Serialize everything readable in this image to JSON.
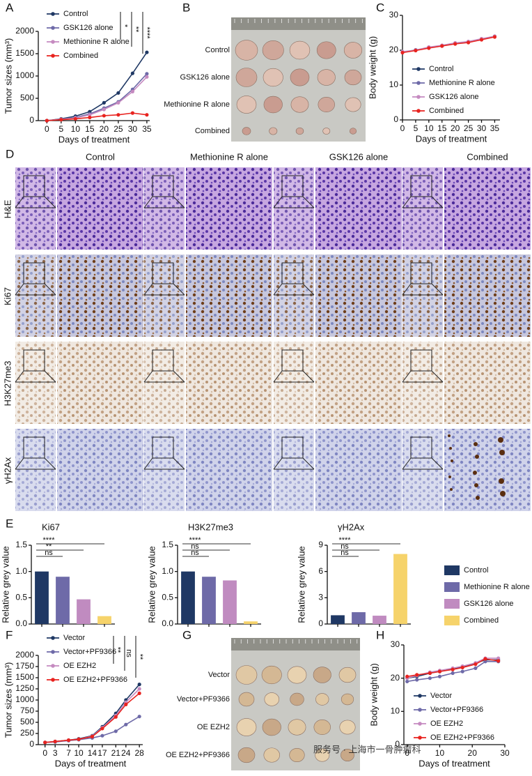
{
  "panel_labels": [
    "A",
    "B",
    "C",
    "D",
    "E",
    "F",
    "G",
    "H"
  ],
  "chart_data": [
    {
      "type": "line",
      "xlabel": "Days of treatment",
      "ylabel": "Tumor sizes (mm³)",
      "x": [
        0,
        5,
        10,
        15,
        20,
        25,
        30,
        35
      ],
      "xlim": [
        -3,
        36
      ],
      "xticks": [
        0,
        5,
        10,
        15,
        20,
        25,
        30,
        35
      ],
      "ylim": [
        0,
        2000
      ],
      "yticks": [
        0,
        500,
        1000,
        1500,
        2000
      ],
      "legend": "upper left",
      "series": [
        {
          "name": "Control",
          "color": "#1f3864",
          "values": [
            0,
            40,
            100,
            200,
            400,
            620,
            1060,
            1530
          ]
        },
        {
          "name": "GSK126 alone",
          "color": "#6e6aa8",
          "values": [
            0,
            30,
            70,
            150,
            280,
            420,
            700,
            1050
          ]
        },
        {
          "name": "Methionine R alone",
          "color": "#c58ac0",
          "values": [
            0,
            30,
            60,
            130,
            250,
            400,
            650,
            980
          ]
        },
        {
          "name": "Combined",
          "color": "#e8231f",
          "values": [
            0,
            20,
            40,
            70,
            110,
            130,
            170,
            130
          ]
        }
      ],
      "annotations": [
        "*",
        "**",
        "****"
      ]
    },
    {
      "type": "line",
      "xlabel": "Days of treatment",
      "ylabel": "Body weight (g)",
      "x": [
        0,
        5,
        10,
        15,
        20,
        25,
        30,
        35
      ],
      "xlim": [
        0,
        37
      ],
      "xticks": [
        0,
        5,
        10,
        15,
        20,
        25,
        30,
        35
      ],
      "ylim": [
        0,
        30
      ],
      "yticks": [
        0,
        10,
        20,
        30
      ],
      "legend": "center left",
      "series": [
        {
          "name": "Control",
          "color": "#1f3864",
          "values": [
            19.5,
            20,
            20.8,
            21.3,
            22,
            22.4,
            23.2,
            24
          ]
        },
        {
          "name": "Methionine R alone",
          "color": "#6e6aa8",
          "values": [
            19.4,
            20.1,
            20.7,
            21.2,
            21.9,
            22.3,
            23.1,
            23.9
          ]
        },
        {
          "name": "GSK126 alone",
          "color": "#c58ac0",
          "values": [
            19.6,
            20,
            20.9,
            21.4,
            22.1,
            22.5,
            23.3,
            24
          ]
        },
        {
          "name": "Combined",
          "color": "#e8231f",
          "values": [
            19.3,
            19.9,
            20.6,
            21.2,
            21.8,
            22.2,
            23,
            23.8
          ]
        }
      ]
    },
    {
      "type": "bar",
      "title": "Ki67",
      "ylabel": "Relative grey value",
      "values": [
        1.0,
        0.9,
        0.47,
        0.15
      ],
      "colors": [
        "#1f3864",
        "#6e6aa8",
        "#c08bc0",
        "#f6d36b"
      ],
      "ylim": [
        0,
        1.5
      ],
      "yticks": [
        {
          "value": 0,
          "label": "0.0"
        },
        0.5,
        {
          "value": 1,
          "label": "1.0"
        },
        1.5
      ],
      "annotations": [
        "ns",
        "**",
        "****"
      ]
    },
    {
      "type": "bar",
      "title": "H3K27me3",
      "ylabel": "Relative grey value",
      "values": [
        1.0,
        0.9,
        0.83,
        0.05
      ],
      "colors": [
        "#1f3864",
        "#6e6aa8",
        "#c08bc0",
        "#f6d36b"
      ],
      "ylim": [
        0,
        1.5
      ],
      "yticks": [
        {
          "value": 0,
          "label": "0.0"
        },
        0.5,
        {
          "value": 1,
          "label": "1.0"
        },
        1.5
      ],
      "annotations": [
        "ns",
        "ns",
        "****"
      ]
    },
    {
      "type": "bar",
      "title": "γH2Ax",
      "ylabel": "Relative grey value",
      "values": [
        1.0,
        1.35,
        0.95,
        8.0
      ],
      "colors": [
        "#1f3864",
        "#6e6aa8",
        "#c08bc0",
        "#f6d36b"
      ],
      "ylim": [
        0,
        9
      ],
      "yticks": [
        0,
        3,
        6,
        9
      ],
      "annotations": [
        "ns",
        "ns",
        "****"
      ]
    },
    {
      "type": "line",
      "xlabel": "Days of treatment",
      "ylabel": "Tumor sizes (mm³)",
      "x": [
        0,
        3,
        7,
        10,
        14,
        17,
        21,
        24,
        28
      ],
      "xlim": [
        -2,
        29
      ],
      "xticks": [
        0,
        3,
        7,
        10,
        14,
        17,
        21,
        24,
        28
      ],
      "ylim": [
        0,
        2000
      ],
      "yticks": [
        0,
        250,
        500,
        750,
        1000,
        1250,
        1500,
        1750,
        2000
      ],
      "legend": "upper left",
      "series": [
        {
          "name": "Vector",
          "color": "#1f3864",
          "values": [
            50,
            70,
            100,
            130,
            200,
            400,
            700,
            1000,
            1350
          ]
        },
        {
          "name": "Vector+PF9366",
          "color": "#6e6aa8",
          "values": [
            50,
            60,
            90,
            110,
            150,
            200,
            300,
            450,
            630
          ]
        },
        {
          "name": "OE EZH2",
          "color": "#c58ac0",
          "values": [
            50,
            70,
            100,
            120,
            190,
            380,
            650,
            950,
            1250
          ]
        },
        {
          "name": "OE EZH2+PF9366",
          "color": "#e8231f",
          "values": [
            50,
            70,
            100,
            120,
            180,
            360,
            620,
            900,
            1150
          ]
        }
      ],
      "annotations": [
        "**",
        "ns",
        "**"
      ]
    },
    {
      "type": "line",
      "xlabel": "Days of treatment",
      "ylabel": "Body weight (g)",
      "x": [
        0,
        3,
        7,
        10,
        14,
        17,
        21,
        24,
        28
      ],
      "xlim": [
        -1,
        30
      ],
      "xticks": [
        0,
        10,
        20,
        30
      ],
      "ylim": [
        0,
        30
      ],
      "yticks": [
        0,
        10,
        20,
        30
      ],
      "legend": "lower left",
      "series": [
        {
          "name": "Vector",
          "color": "#1f3864",
          "values": [
            20,
            20.5,
            21.5,
            22,
            22.8,
            23.5,
            24.5,
            25.5,
            25.5
          ]
        },
        {
          "name": "Vector+PF9366",
          "color": "#6e6aa8",
          "values": [
            19,
            19.5,
            20,
            20.5,
            21.5,
            22,
            23,
            25,
            25
          ]
        },
        {
          "name": "OE EZH2",
          "color": "#c58ac0",
          "values": [
            20,
            20.8,
            21.8,
            22.3,
            23,
            23.6,
            24.6,
            26,
            26
          ]
        },
        {
          "name": "OE EZH2+PF9366",
          "color": "#e8231f",
          "values": [
            20.5,
            21,
            21.5,
            22,
            22.6,
            23.2,
            24.2,
            25.8,
            25.2
          ]
        }
      ]
    }
  ],
  "legend_e": [
    {
      "name": "Control",
      "color": "#1f3864"
    },
    {
      "name": "Methionine R alone",
      "color": "#6e6aa8"
    },
    {
      "name": "GSK126 alone",
      "color": "#c08bc0"
    },
    {
      "name": "Combined",
      "color": "#f6d36b"
    }
  ],
  "tumor_photos_b": {
    "rows": [
      "Control",
      "GSK126 alone",
      "Methionine R alone",
      "Combined"
    ]
  },
  "histology_d": {
    "columns": [
      "Control",
      "Methionine R alone",
      "GSK126 alone",
      "Combined"
    ],
    "rows": [
      "H&E",
      "Ki67",
      "H3K27me3",
      "γH2Ax"
    ]
  },
  "tumor_photos_g": {
    "rows": [
      "Vector",
      "Vector+PF9366",
      "OE EZH2",
      "OE EZH2+PF9366"
    ]
  },
  "watermark": "服务号 · 上海市一骨肿瘤科"
}
